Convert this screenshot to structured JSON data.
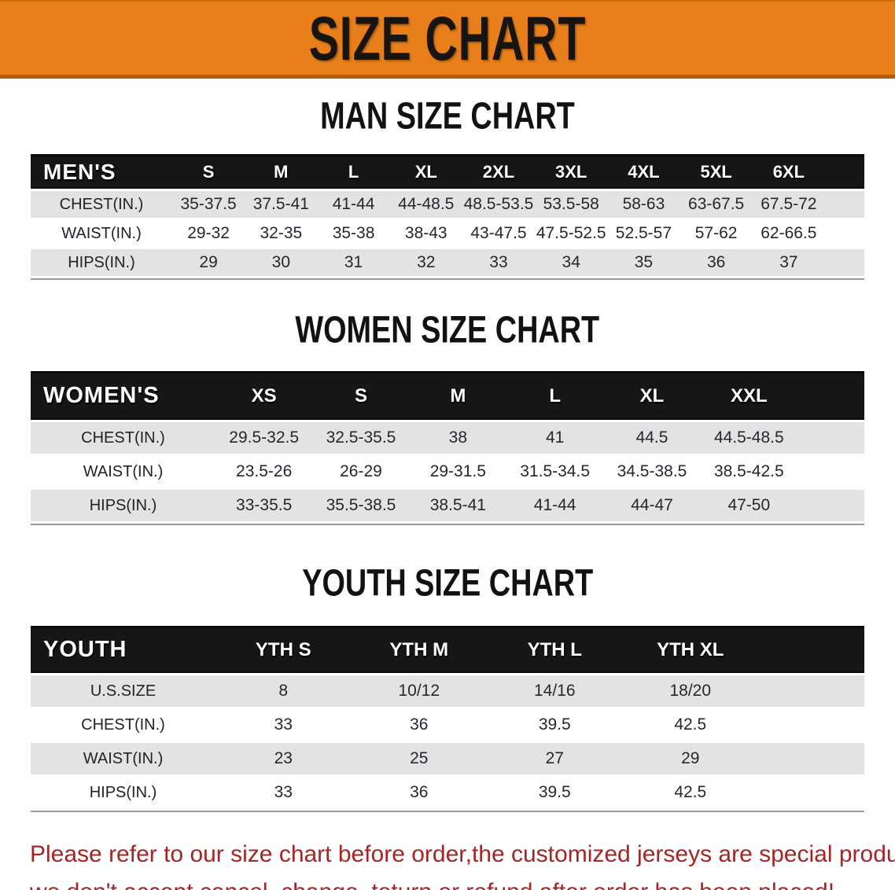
{
  "banner": {
    "title": "SIZE CHART",
    "bg_color": "#e87f1b",
    "text_color": "#181410"
  },
  "sections": [
    {
      "id": "men",
      "heading": "MAN SIZE CHART",
      "table": {
        "header_label": "MEN'S",
        "columns": [
          "S",
          "M",
          "L",
          "XL",
          "2XL",
          "3XL",
          "4XL",
          "5XL",
          "6XL"
        ],
        "rows": [
          {
            "label": "CHEST(IN.)",
            "values": [
              "35-37.5",
              "37.5-41",
              "41-44",
              "44-48.5",
              "48.5-53.5",
              "53.5-58",
              "58-63",
              "63-67.5",
              "67.5-72"
            ]
          },
          {
            "label": "WAIST(IN.)",
            "values": [
              "29-32",
              "32-35",
              "35-38",
              "38-43",
              "43-47.5",
              "47.5-52.5",
              "52.5-57",
              "57-62",
              "62-66.5"
            ]
          },
          {
            "label": "HIPS(IN.)",
            "values": [
              "29",
              "30",
              "31",
              "32",
              "33",
              "34",
              "35",
              "36",
              "37"
            ]
          }
        ]
      }
    },
    {
      "id": "women",
      "heading": "WOMEN SIZE CHART",
      "table": {
        "header_label": "WOMEN'S",
        "columns": [
          "XS",
          "S",
          "M",
          "L",
          "XL",
          "XXL"
        ],
        "rows": [
          {
            "label": "CHEST(IN.)",
            "values": [
              "29.5-32.5",
              "32.5-35.5",
              "38",
              "41",
              "44.5",
              "44.5-48.5"
            ]
          },
          {
            "label": "WAIST(IN.)",
            "values": [
              "23.5-26",
              "26-29",
              "29-31.5",
              "31.5-34.5",
              "34.5-38.5",
              "38.5-42.5"
            ]
          },
          {
            "label": "HIPS(IN.)",
            "values": [
              "33-35.5",
              "35.5-38.5",
              "38.5-41",
              "41-44",
              "44-47",
              "47-50"
            ]
          }
        ]
      }
    },
    {
      "id": "youth",
      "heading": "YOUTH SIZE CHART",
      "table": {
        "header_label": "YOUTH",
        "columns": [
          "YTH S",
          "YTH M",
          "YTH L",
          "YTH XL"
        ],
        "rows": [
          {
            "label": "U.S.SIZE",
            "values": [
              "8",
              "10/12",
              "14/16",
              "18/20"
            ]
          },
          {
            "label": "CHEST(IN.)",
            "values": [
              "33",
              "36",
              "39.5",
              "42.5"
            ]
          },
          {
            "label": "WAIST(IN.)",
            "values": [
              "23",
              "25",
              "27",
              "29"
            ]
          },
          {
            "label": "HIPS(IN.)",
            "values": [
              "33",
              "36",
              "39.5",
              "42.5"
            ]
          }
        ]
      }
    }
  ],
  "footer": {
    "line1": "Please refer to our size chart before order,the customized jerseys are special products,",
    "line2": "we don't accept cancel, change, teturn or refund after order has been placed!"
  }
}
